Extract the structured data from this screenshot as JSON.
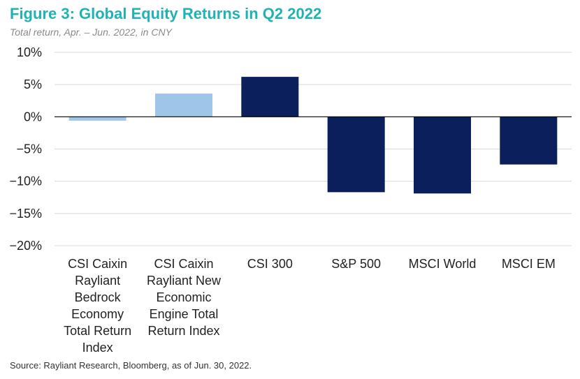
{
  "title": "Figure 3: Global Equity Returns in Q2 2022",
  "subtitle": "Total return, Apr. – Jun. 2022, in CNY",
  "source": "Source: Rayliant Research, Bloomberg, as of Jun. 30, 2022.",
  "colors": {
    "title": "#1fb3b3",
    "light_bar": "#9fc5e8",
    "dark_bar": "#0b1f5c",
    "grid": "#d9d9d9"
  },
  "chart_data": {
    "type": "bar",
    "title": "Figure 3: Global Equity Returns in Q2 2022",
    "subtitle": "Total return, Apr. – Jun. 2022, in CNY",
    "categories": [
      [
        "CSI Caixin",
        "Rayliant",
        "Bedrock",
        "Economy",
        "Total Return",
        "Index"
      ],
      [
        "CSI Caixin",
        "Rayliant New",
        "Economic",
        "Engine Total",
        "Return Index"
      ],
      [
        "CSI 300"
      ],
      [
        "S&P 500"
      ],
      [
        "MSCI World"
      ],
      [
        "MSCI EM"
      ]
    ],
    "values": [
      -0.6,
      3.6,
      6.2,
      -11.7,
      -11.9,
      -7.4
    ],
    "bar_colors": [
      "#9fc5e8",
      "#9fc5e8",
      "#0b1f5c",
      "#0b1f5c",
      "#0b1f5c",
      "#0b1f5c"
    ],
    "ylim": [
      -20,
      10
    ],
    "yticks": [
      10,
      5,
      0,
      -5,
      -10,
      -15,
      -20
    ],
    "ytick_labels": [
      "10%",
      "5%",
      "0%",
      "−5%",
      "−10%",
      "−15%",
      "−20%"
    ],
    "grid": true,
    "legend": false,
    "xlabel": "",
    "ylabel": ""
  }
}
